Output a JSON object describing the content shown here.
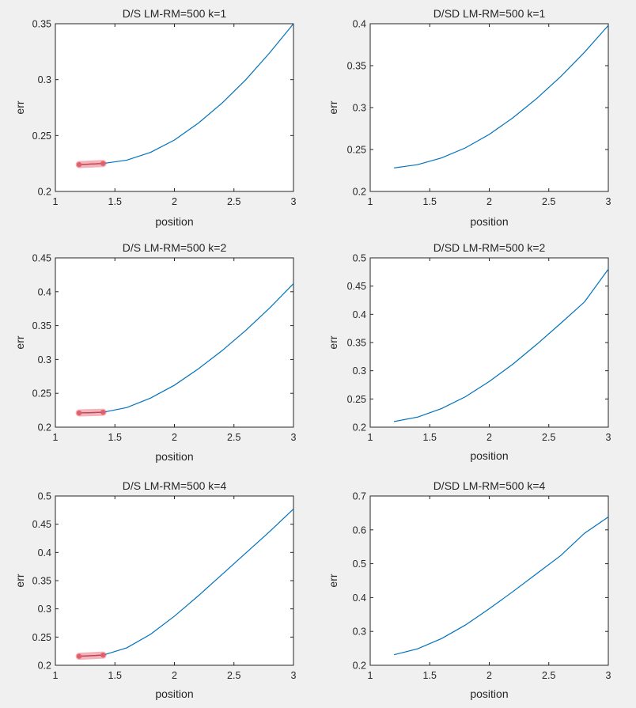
{
  "chart_data": [
    {
      "type": "line",
      "title": "D/S LM-RM=500 k=1",
      "xlabel": "position",
      "ylabel": "err",
      "xlim": [
        1,
        3
      ],
      "ylim": [
        0.2,
        0.35
      ],
      "xticks": [
        "1",
        "1.5",
        "2",
        "2.5",
        "3"
      ],
      "yticks": [
        "0.2",
        "0.25",
        "0.3",
        "0.35"
      ],
      "x": [
        1.2,
        1.4,
        1.6,
        1.8,
        2.0,
        2.2,
        2.4,
        2.6,
        2.8,
        3.0
      ],
      "series": [
        {
          "values": [
            0.224,
            0.225,
            0.228,
            0.235,
            0.246,
            0.261,
            0.279,
            0.3,
            0.324,
            0.35
          ]
        }
      ],
      "highlight": {
        "x": [
          1.2,
          1.4
        ],
        "y": [
          0.224,
          0.225
        ],
        "color": "#e0606d"
      }
    },
    {
      "type": "line",
      "title": "D/SD LM-RM=500 k=1",
      "xlabel": "position",
      "ylabel": "err",
      "xlim": [
        1,
        3
      ],
      "ylim": [
        0.2,
        0.4
      ],
      "xticks": [
        "1",
        "1.5",
        "2",
        "2.5",
        "3"
      ],
      "yticks": [
        "0.2",
        "0.25",
        "0.3",
        "0.35",
        "0.4"
      ],
      "x": [
        1.2,
        1.4,
        1.6,
        1.8,
        2.0,
        2.2,
        2.4,
        2.6,
        2.8,
        3.0
      ],
      "series": [
        {
          "values": [
            0.228,
            0.232,
            0.24,
            0.252,
            0.268,
            0.288,
            0.311,
            0.337,
            0.366,
            0.398
          ]
        }
      ]
    },
    {
      "type": "line",
      "title": "D/S LM-RM=500 k=2",
      "xlabel": "position",
      "ylabel": "err",
      "xlim": [
        1,
        3
      ],
      "ylim": [
        0.2,
        0.45
      ],
      "xticks": [
        "1",
        "1.5",
        "2",
        "2.5",
        "3"
      ],
      "yticks": [
        "0.2",
        "0.25",
        "0.3",
        "0.35",
        "0.4",
        "0.45"
      ],
      "x": [
        1.2,
        1.4,
        1.6,
        1.8,
        2.0,
        2.2,
        2.4,
        2.6,
        2.8,
        3.0
      ],
      "series": [
        {
          "values": [
            0.221,
            0.222,
            0.229,
            0.243,
            0.262,
            0.286,
            0.313,
            0.343,
            0.376,
            0.412
          ]
        }
      ],
      "highlight": {
        "x": [
          1.2,
          1.4
        ],
        "y": [
          0.221,
          0.222
        ],
        "color": "#e0606d"
      }
    },
    {
      "type": "line",
      "title": "D/SD LM-RM=500 k=2",
      "xlabel": "position",
      "ylabel": "err",
      "xlim": [
        1,
        3
      ],
      "ylim": [
        0.2,
        0.5
      ],
      "xticks": [
        "1",
        "1.5",
        "2",
        "2.5",
        "3"
      ],
      "yticks": [
        "0.2",
        "0.25",
        "0.3",
        "0.35",
        "0.4",
        "0.45",
        "0.5"
      ],
      "x": [
        1.2,
        1.4,
        1.6,
        1.8,
        2.0,
        2.2,
        2.4,
        2.6,
        2.8,
        3.0
      ],
      "series": [
        {
          "values": [
            0.21,
            0.218,
            0.233,
            0.254,
            0.281,
            0.312,
            0.347,
            0.384,
            0.422,
            0.48
          ]
        }
      ]
    },
    {
      "type": "line",
      "title": "D/S LM-RM=500 k=4",
      "xlabel": "position",
      "ylabel": "err",
      "xlim": [
        1,
        3
      ],
      "ylim": [
        0.2,
        0.5
      ],
      "xticks": [
        "1",
        "1.5",
        "2",
        "2.5",
        "3"
      ],
      "yticks": [
        "0.2",
        "0.25",
        "0.3",
        "0.35",
        "0.4",
        "0.45",
        "0.5"
      ],
      "x": [
        1.2,
        1.4,
        1.6,
        1.8,
        2.0,
        2.2,
        2.4,
        2.6,
        2.8,
        3.0
      ],
      "series": [
        {
          "values": [
            0.216,
            0.218,
            0.231,
            0.255,
            0.287,
            0.323,
            0.361,
            0.399,
            0.437,
            0.477
          ]
        }
      ],
      "highlight": {
        "x": [
          1.2,
          1.4
        ],
        "y": [
          0.216,
          0.218
        ],
        "color": "#e0606d"
      }
    },
    {
      "type": "line",
      "title": "D/SD LM-RM=500 k=4",
      "xlabel": "position",
      "ylabel": "err",
      "xlim": [
        1,
        3
      ],
      "ylim": [
        0.2,
        0.7
      ],
      "xticks": [
        "1",
        "1.5",
        "2",
        "2.5",
        "3"
      ],
      "yticks": [
        "0.2",
        "0.3",
        "0.4",
        "0.5",
        "0.6",
        "0.7"
      ],
      "x": [
        1.2,
        1.4,
        1.6,
        1.8,
        2.0,
        2.2,
        2.4,
        2.6,
        2.8,
        3.0
      ],
      "series": [
        {
          "values": [
            0.231,
            0.249,
            0.279,
            0.319,
            0.367,
            0.418,
            0.471,
            0.524,
            0.59,
            0.638
          ]
        }
      ]
    }
  ]
}
